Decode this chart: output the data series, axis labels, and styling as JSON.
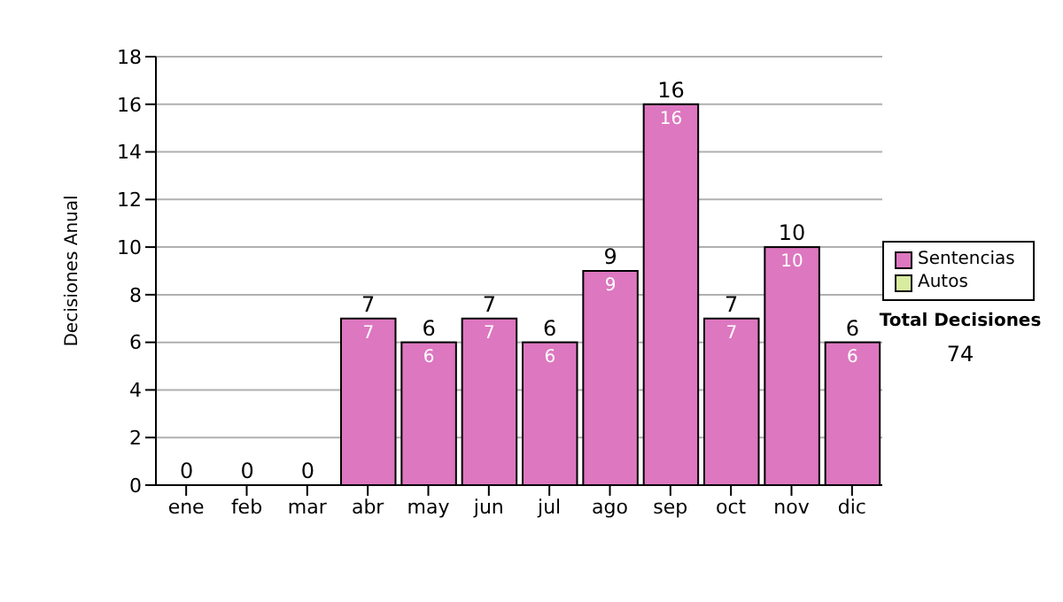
{
  "chart_data": {
    "type": "bar",
    "ylabel": "Decisiones Anual",
    "categories": [
      "ene",
      "feb",
      "mar",
      "abr",
      "may",
      "jun",
      "jul",
      "ago",
      "sep",
      "oct",
      "nov",
      "dic"
    ],
    "series": [
      {
        "name": "Sentencias",
        "color": "#dd77c0",
        "values": [
          0,
          0,
          0,
          7,
          6,
          7,
          6,
          9,
          16,
          7,
          10,
          6
        ],
        "value_labels": [
          null,
          null,
          null,
          "7",
          "6",
          "7",
          "6",
          "9",
          "16",
          "7",
          "10",
          "6"
        ]
      },
      {
        "name": "Autos",
        "color": "#d8eba0",
        "values": [
          0,
          0,
          0,
          0,
          0,
          0,
          0,
          0,
          0,
          0,
          0,
          0
        ]
      }
    ],
    "stacked": true,
    "totals": [
      "0",
      "0",
      "0",
      "7",
      "6",
      "7",
      "6",
      "9",
      "16",
      "7",
      "10",
      "6"
    ],
    "ylim": [
      0,
      18
    ],
    "yticks": [
      0,
      2,
      4,
      6,
      8,
      10,
      12,
      14,
      16,
      18
    ],
    "grid": "y",
    "legend": "right",
    "annotations": [
      "Total Decisiones",
      "74"
    ]
  }
}
